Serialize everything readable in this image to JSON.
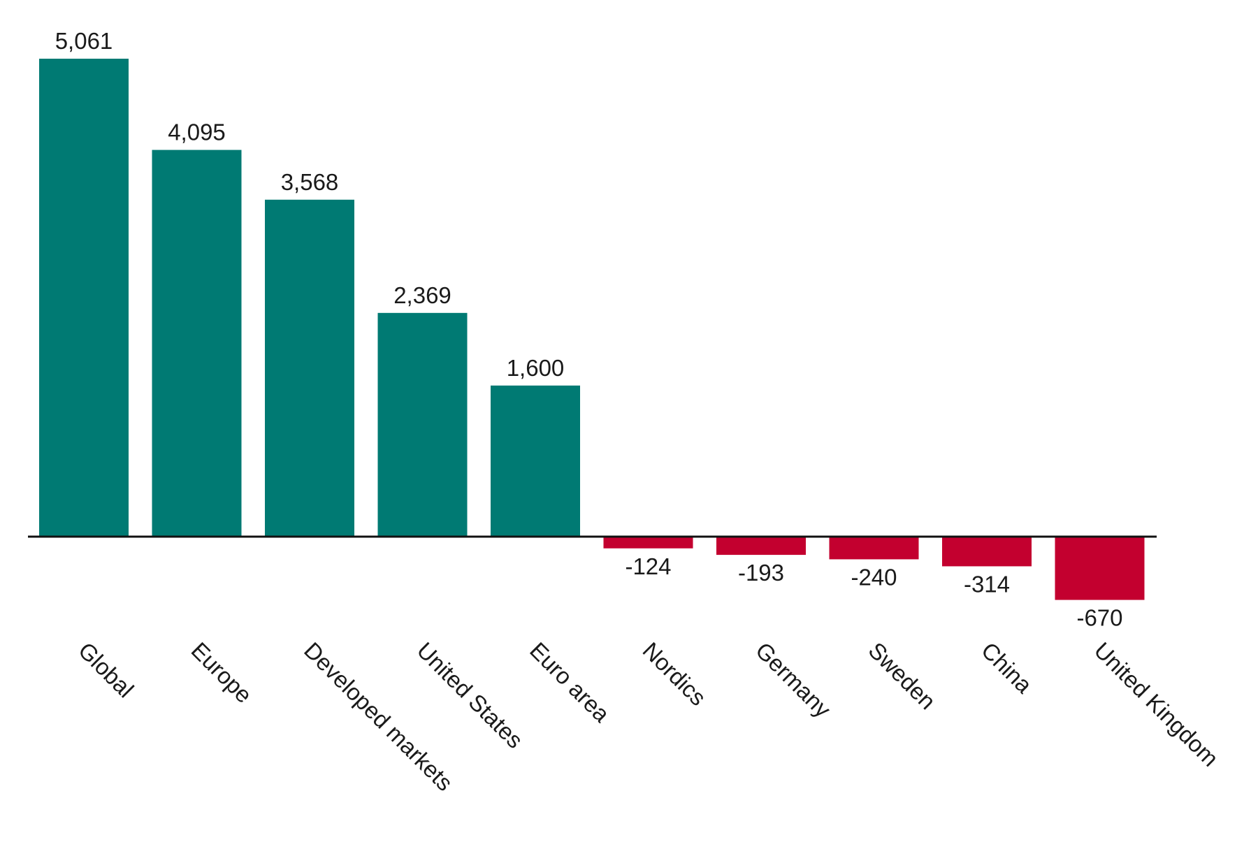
{
  "chart_data": {
    "type": "bar",
    "title": "",
    "xlabel": "",
    "ylabel": "",
    "categories": [
      "Global",
      "Europe",
      "Developed markets",
      "United States",
      "Euro area",
      "Nordics",
      "Germany",
      "Sweden",
      "China",
      "United Kingdom"
    ],
    "values": [
      5061,
      4095,
      3568,
      2369,
      1600,
      -124,
      -193,
      -240,
      -314,
      -670
    ],
    "value_labels": [
      "5,061",
      "4,095",
      "3,568",
      "2,369",
      "1,600",
      "-124",
      "-193",
      "-240",
      "-314",
      "-670"
    ],
    "ylim": [
      -670,
      5061
    ],
    "grid": false,
    "legend": "none",
    "colors": {
      "positive": "#007A73",
      "negative": "#C3002F",
      "axis": "#111111"
    }
  }
}
